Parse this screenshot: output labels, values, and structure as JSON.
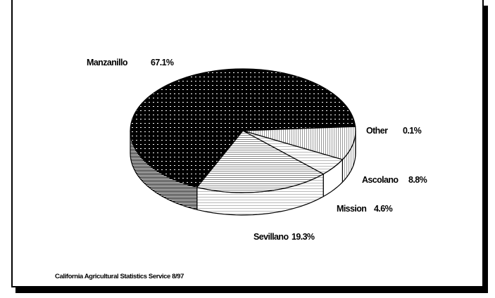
{
  "chart_data": {
    "type": "pie",
    "categories": [
      "Manzanillo",
      "Other",
      "Ascolano",
      "Mission",
      "Sevillano"
    ],
    "values": [
      67.1,
      0.1,
      8.8,
      4.6,
      19.3
    ],
    "labels": [
      {
        "name": "Manzanillo",
        "value_text": "67.1%"
      },
      {
        "name": "Other",
        "value_text": "0.1%"
      },
      {
        "name": "Ascolano",
        "value_text": "8.8%"
      },
      {
        "name": "Mission",
        "value_text": "4.6%"
      },
      {
        "name": "Sevillano",
        "value_text": "19.3%"
      }
    ],
    "style": "3d-pie",
    "legend": "none",
    "source_note": "California Agricultural Statistics Service 8/97"
  }
}
